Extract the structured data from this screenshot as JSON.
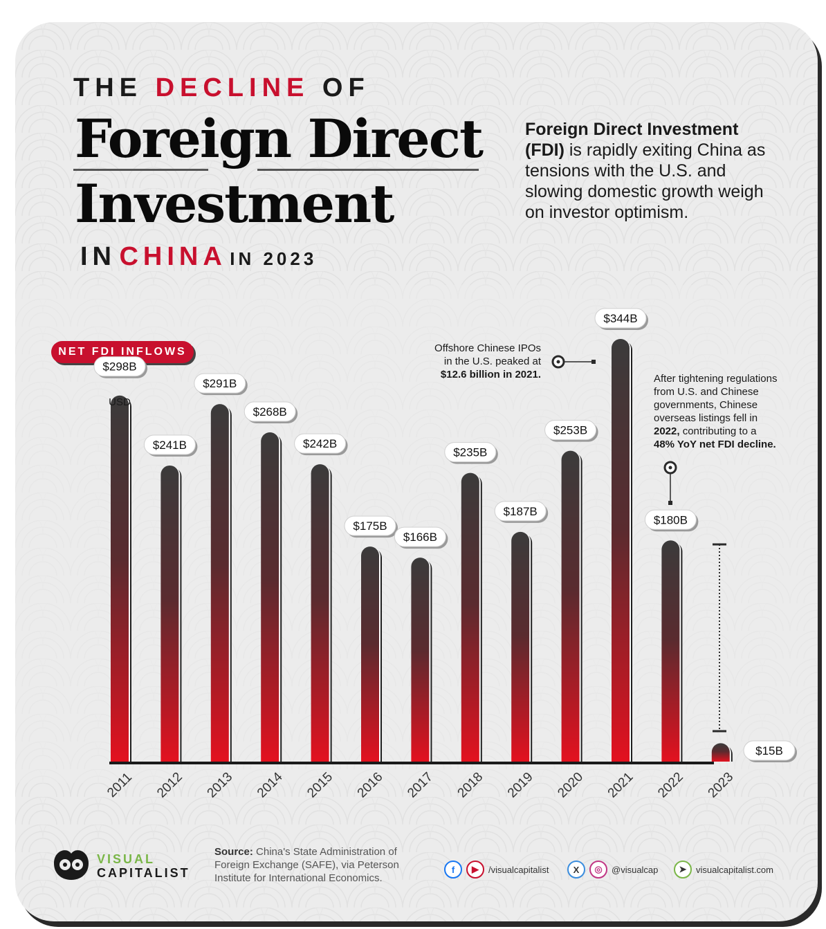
{
  "header": {
    "line1_pre": "THE",
    "line1_accent": "DECLINE",
    "line1_post": "OF",
    "line2": "Foreign Direct",
    "line3": "Investment",
    "line4_pre": "IN",
    "line4_accent": "CHINA",
    "line4_post": "IN 2023"
  },
  "intro": {
    "bold": "Foreign Direct Investment (FDI)",
    "rest": " is rapidly exiting China as tensions with the U.S. and slowing domestic growth weigh on investor optimism."
  },
  "chart_data": {
    "type": "bar",
    "badge": "NET FDI INFLOWS",
    "unit_note": "USD",
    "categories": [
      "2011",
      "2012",
      "2013",
      "2014",
      "2015",
      "2016",
      "2017",
      "2018",
      "2019",
      "2020",
      "2021",
      "2022",
      "2023"
    ],
    "values": [
      298,
      241,
      291,
      268,
      242,
      175,
      166,
      235,
      187,
      253,
      344,
      180,
      15
    ],
    "value_labels": [
      "$298B",
      "$241B",
      "$291B",
      "$268B",
      "$242B",
      "$175B",
      "$166B",
      "$235B",
      "$187B",
      "$253B",
      "$344B",
      "$180B",
      "$15B"
    ],
    "ylim": [
      0,
      344
    ],
    "colors": {
      "top": "#3b3b3b",
      "bottom": "#e3111f"
    }
  },
  "annotations": {
    "ipo_1": "Offshore Chinese IPOs",
    "ipo_2": "in the U.S. peaked at",
    "ipo_3": "$12.6 billion in 2021.",
    "listings_1": "After tightening regulations",
    "listings_2": "from U.S. and Chinese",
    "listings_3": "governments, Chinese",
    "listings_4": "overseas listings fell in",
    "listings_5_bold": "2022,",
    "listings_5_rest": " contributing to a",
    "listings_6": "48% YoY net FDI decline."
  },
  "footer": {
    "brand_1": "VISUAL",
    "brand_2": "CAPITALIST",
    "source_label": "Source:",
    "source_text": " China's State Administration of Foreign Exchange (SAFE), via Peterson Institute for International Economics.",
    "social_1": "/visualcapitalist",
    "social_2": "@visualcap",
    "social_3": "visualcapitalist.com"
  }
}
